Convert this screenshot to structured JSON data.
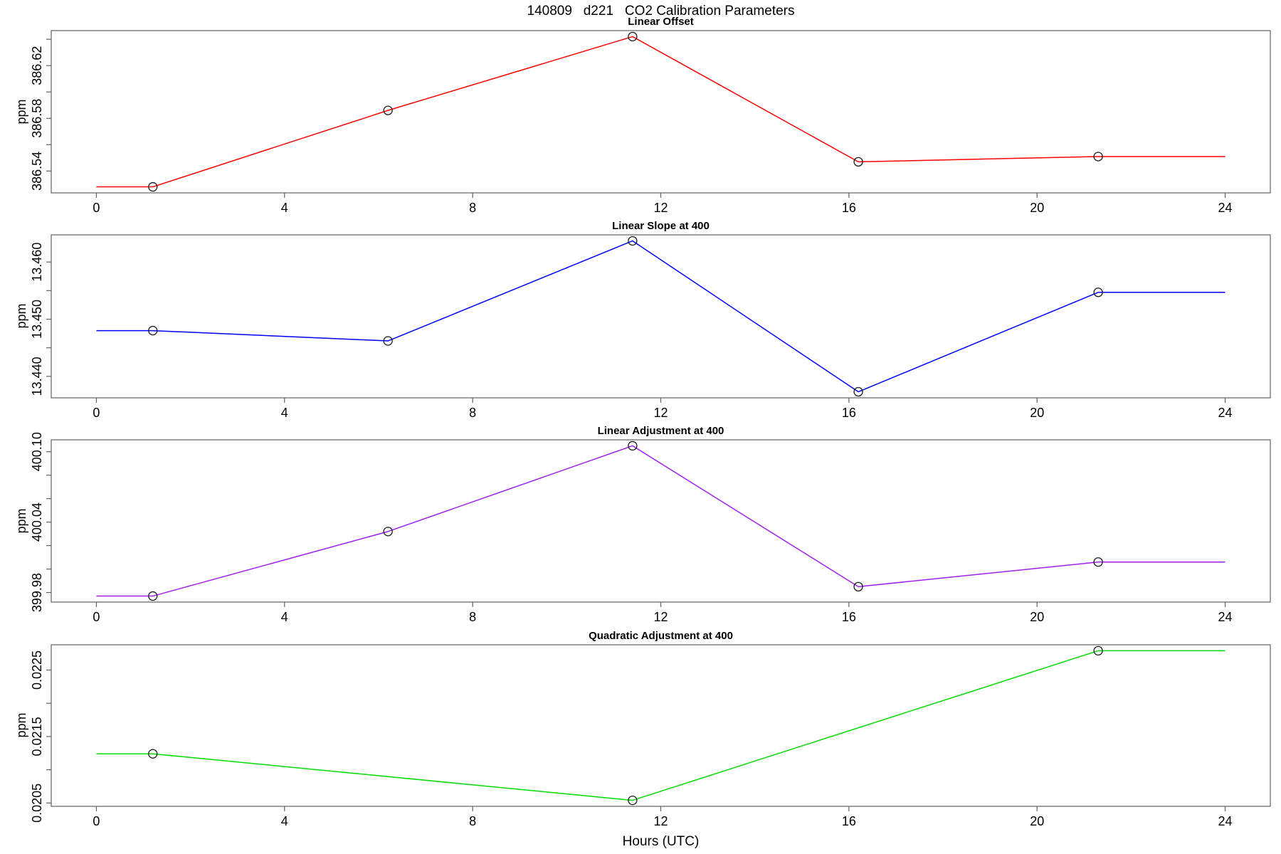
{
  "figure": {
    "main_title": "140809   d221   CO2 Calibration Parameters",
    "xlabel": "Hours (UTC)",
    "background_color": "#ffffff",
    "text_color": "#000000",
    "axis_color": "#606060"
  },
  "chart_data": {
    "type": "line",
    "title": "140809   d221   CO2 Calibration Parameters",
    "xlabel": "Hours (UTC)",
    "x_ticks": [
      0,
      4,
      8,
      12,
      16,
      20,
      24
    ],
    "xlim": [
      -0.96,
      24.96
    ],
    "legend": "none",
    "grid": false,
    "marker_style": "open-circle",
    "panels": [
      {
        "title": "Linear Offset",
        "ylabel": "ppm",
        "color": "#ff0000",
        "x": [
          0,
          1.2,
          6.2,
          11.4,
          16.2,
          21.3,
          24
        ],
        "y": [
          386.528,
          386.528,
          386.586,
          386.642,
          386.547,
          386.551,
          386.551
        ],
        "marker_indices": [
          1,
          2,
          3,
          4,
          5
        ],
        "yticks": [
          386.54,
          386.56,
          386.58,
          386.6,
          386.62,
          386.64
        ],
        "ytick_labels": [
          "386.54",
          "",
          "386.58",
          "",
          "386.62",
          ""
        ]
      },
      {
        "title": "Linear Slope at 400",
        "ylabel": "ppm",
        "color": "#0000ff",
        "x": [
          0,
          1.2,
          6.2,
          11.4,
          16.2,
          21.3,
          24
        ],
        "y": [
          13.448,
          13.448,
          13.4462,
          13.4637,
          13.4373,
          13.4547,
          13.4547
        ],
        "marker_indices": [
          1,
          2,
          3,
          4,
          5
        ],
        "yticks": [
          13.44,
          13.445,
          13.45,
          13.455,
          13.46
        ],
        "ytick_labels": [
          "13.440",
          "",
          "13.450",
          "",
          "13.460"
        ]
      },
      {
        "title": "Linear Adjustment at 400",
        "ylabel": "ppm",
        "color": "#a020f0",
        "x": [
          0,
          1.2,
          6.2,
          11.4,
          16.2,
          21.3,
          24
        ],
        "y": [
          399.977,
          399.977,
          400.032,
          400.105,
          399.985,
          400.006,
          400.006
        ],
        "marker_indices": [
          1,
          2,
          3,
          4,
          5
        ],
        "yticks": [
          399.98,
          400.0,
          400.02,
          400.04,
          400.06,
          400.08,
          400.1
        ],
        "ytick_labels": [
          "399.98",
          "",
          "",
          "400.04",
          "",
          "",
          "400.10"
        ]
      },
      {
        "title": "Quadratic Adjustment at 400",
        "ylabel": "ppm",
        "color": "#00dd00",
        "x": [
          0,
          1.2,
          11.4,
          21.3,
          24
        ],
        "y": [
          0.02124,
          0.02124,
          0.02054,
          0.02279,
          0.02279
        ],
        "marker_indices": [
          1,
          2,
          3
        ],
        "yticks": [
          0.0205,
          0.021,
          0.0215,
          0.022,
          0.0225
        ],
        "ytick_labels": [
          "0.0205",
          "",
          "0.0215",
          "",
          "0.0225"
        ]
      }
    ]
  }
}
